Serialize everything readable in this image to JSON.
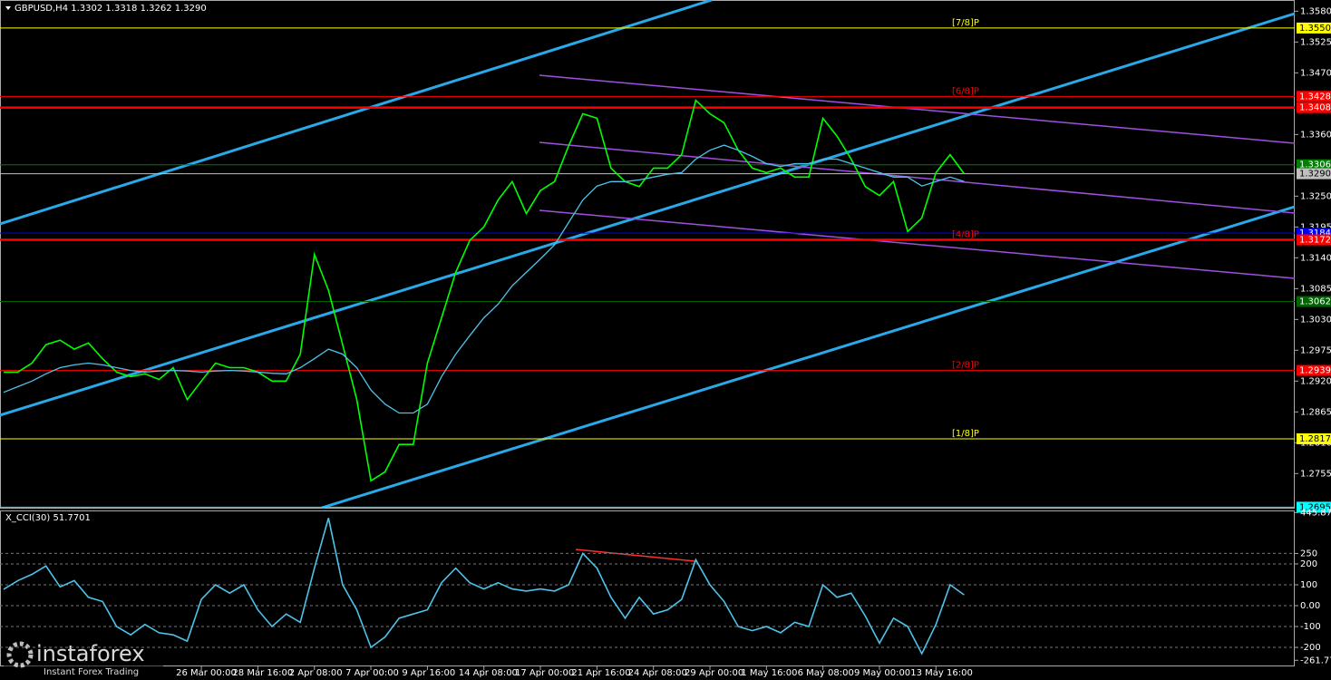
{
  "chart_data": [
    {
      "type": "line",
      "title": "GBPUSD,H4  1.3302 1.3318 1.3262 1.3290",
      "categories": [
        null,
        null,
        null,
        null,
        null,
        null,
        null,
        null,
        null,
        null,
        null,
        null,
        null,
        null,
        "26 Mar 00:00",
        null,
        null,
        null,
        "28 Mar 16:00",
        null,
        null,
        null,
        "2 Apr 08:00",
        null,
        null,
        null,
        "7 Apr 00:00",
        null,
        null,
        null,
        "9 Apr 16:00",
        null,
        null,
        null,
        "14 Apr 08:00",
        null,
        null,
        null,
        "17 Apr 00:00",
        null,
        null,
        null,
        "21 Apr 16:00",
        null,
        null,
        null,
        "24 Apr 08:00",
        null,
        null,
        null,
        "29 Apr 00:00",
        null,
        null,
        null,
        "1 May 16:00",
        null,
        null,
        null,
        "6 May 08:00",
        null,
        null,
        null,
        "9 May 00:00",
        null,
        null,
        null,
        "13 May 16:00",
        null,
        null
      ],
      "series": [
        {
          "color": "#00ff00",
          "values": [
            1.2936,
            1.2936,
            1.2952,
            1.2985,
            1.2993,
            1.2977,
            1.2988,
            1.296,
            1.2936,
            1.2928,
            1.2933,
            1.2923,
            1.2944,
            1.2887,
            1.292,
            1.2952,
            1.2944,
            1.2944,
            1.2936,
            1.292,
            1.292,
            1.2968,
            1.3146,
            1.3082,
            1.2985,
            1.2887,
            1.2742,
            1.2758,
            1.2807,
            1.2807,
            1.2952,
            1.3033,
            1.3114,
            1.3171,
            1.3195,
            1.3243,
            1.3276,
            1.3219,
            1.326,
            1.3276,
            1.334,
            1.3397,
            1.3389,
            1.33,
            1.3276,
            1.3267,
            1.33,
            1.33,
            1.3324,
            1.3421,
            1.3397,
            1.3381,
            1.3332,
            1.33,
            1.3292,
            1.33,
            1.3284,
            1.3284,
            1.3389,
            1.3357,
            1.3316,
            1.3267,
            1.3251,
            1.3276,
            1.3187,
            1.3211,
            1.3292,
            1.3324,
            1.329
          ]
        },
        {
          "color": "#4ec3ea",
          "values": [
            1.29,
            1.291,
            1.292,
            1.2933,
            1.2944,
            1.2949,
            1.2952,
            1.2949,
            1.2944,
            1.2939,
            1.2936,
            1.2938,
            1.2939,
            1.2938,
            1.2936,
            1.2938,
            1.2939,
            1.2938,
            1.2936,
            1.2934,
            1.2933,
            1.2944,
            1.296,
            1.2977,
            1.2968,
            1.2944,
            1.2904,
            1.2879,
            1.2863,
            1.2863,
            1.2879,
            1.2928,
            1.2968,
            1.3001,
            1.3033,
            1.3057,
            1.309,
            1.3114,
            1.3138,
            1.3163,
            1.3203,
            1.3243,
            1.3268,
            1.3276,
            1.3276,
            1.3279,
            1.3284,
            1.3289,
            1.3292,
            1.3316,
            1.3332,
            1.3341,
            1.3332,
            1.3321,
            1.3308,
            1.3303,
            1.3308,
            1.3308,
            1.3316,
            1.3316,
            1.3308,
            1.33,
            1.3292,
            1.3284,
            1.3284,
            1.3268,
            1.3276,
            1.3284,
            1.3276
          ]
        }
      ],
      "ylim": [
        1.2694,
        1.36
      ],
      "yticks": [
        {
          "value": 1.358,
          "label": "1.3580"
        },
        {
          "value": 1.3525,
          "label": "1.3525"
        },
        {
          "value": 1.347,
          "label": "1.3470"
        },
        {
          "value": 1.336,
          "label": "1.3360"
        },
        {
          "value": 1.325,
          "label": "1.3250"
        },
        {
          "value": 1.3195,
          "label": "1.3195"
        },
        {
          "value": 1.314,
          "label": "1.3140"
        },
        {
          "value": 1.3085,
          "label": "1.3085"
        },
        {
          "value": 1.303,
          "label": "1.3030"
        },
        {
          "value": 1.2975,
          "label": "1.2975"
        },
        {
          "value": 1.292,
          "label": "1.2920"
        },
        {
          "value": 1.2865,
          "label": "1.2865"
        },
        {
          "value": 1.281,
          "label": "1.2810"
        },
        {
          "value": 1.2755,
          "label": "1.2755"
        }
      ],
      "levels": [
        {
          "value": 1.355,
          "label": "1.3550",
          "color": "#ffff00",
          "tag": "[7/8]P"
        },
        {
          "value": 1.3428,
          "label": "1.3428",
          "color": "#ff0000",
          "tag": "[6/8]P"
        },
        {
          "value": 1.3408,
          "label": "1.3408",
          "color": "#ff0000"
        },
        {
          "value": 1.3306,
          "label": "1.3306",
          "color": "#008000"
        },
        {
          "value": 1.329,
          "label": "1.3290",
          "color": "#c0c0c0"
        },
        {
          "value": 1.3184,
          "label": "1.3184",
          "color": "#0000ff"
        },
        {
          "value": 1.3172,
          "label": "1.3172",
          "color": "#ff0000",
          "tag": "[4/8]P"
        },
        {
          "value": 1.3062,
          "label": "1.3062",
          "color": "#006400"
        },
        {
          "value": 1.2939,
          "label": "1.2939",
          "color": "#ff0000",
          "tag": "[2/8]P"
        },
        {
          "value": 1.2817,
          "label": "1.2817",
          "color": "#ffff00",
          "tag": "[1/8]P"
        },
        {
          "value": 1.2695,
          "label": "1.2695",
          "color": "#00ffff"
        }
      ]
    },
    {
      "type": "line",
      "title": "X_CCI(30) 51.7701",
      "series": [
        {
          "color": "#4ec3ea",
          "values": [
            78,
            120,
            150,
            190,
            90,
            120,
            40,
            20,
            -100,
            -140,
            -90,
            -130,
            -140,
            -170,
            30,
            100,
            60,
            100,
            -20,
            -100,
            -40,
            -80,
            180,
            420,
            100,
            -20,
            -200,
            -150,
            -60,
            -40,
            -20,
            110,
            180,
            110,
            80,
            110,
            80,
            70,
            80,
            70,
            100,
            250,
            180,
            40,
            -60,
            40,
            -40,
            -20,
            30,
            220,
            100,
            20,
            -100,
            -120,
            -100,
            -130,
            -80,
            -100,
            100,
            40,
            60,
            -50,
            -180,
            -60,
            -100,
            -230,
            -90,
            100,
            51.7701
          ]
        }
      ],
      "ylim": [
        -291,
        456
      ],
      "yticks": [
        445.8715,
        250,
        200,
        100,
        {
          "value": 0,
          "label": "0.00"
        },
        -100,
        -200,
        -261.7757
      ],
      "grid": [
        250,
        200,
        100,
        0,
        -100,
        -200
      ]
    }
  ],
  "watermark": {
    "brand": "instaforex",
    "tagline": "Instant Forex Trading"
  }
}
